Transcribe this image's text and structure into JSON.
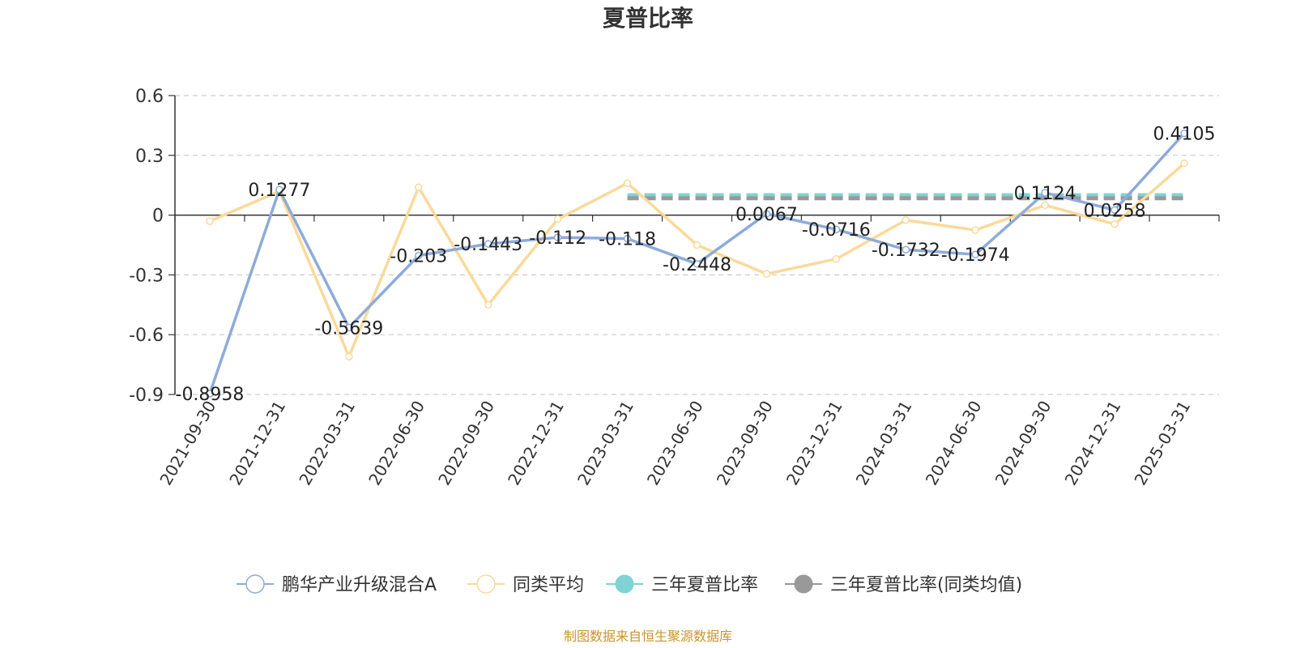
{
  "chart_data": {
    "type": "line",
    "title": "夏普比率",
    "source": "制图数据来自恒生聚源数据库",
    "x": [
      "2021-09-30",
      "2021-12-31",
      "2022-03-31",
      "2022-06-30",
      "2022-09-30",
      "2022-12-31",
      "2023-03-31",
      "2023-06-30",
      "2023-09-30",
      "2023-12-31",
      "2024-03-31",
      "2024-06-30",
      "2024-09-30",
      "2024-12-31",
      "2025-03-31"
    ],
    "yticks": [
      0.6,
      0.3,
      0,
      -0.3,
      -0.6,
      -0.9
    ],
    "ylim": [
      -0.9,
      0.6
    ],
    "grid": true,
    "legend_position": "bottom",
    "series": [
      {
        "name": "鹏华产业升级混合A",
        "color": "#8eabd9",
        "values": [
          -0.8958,
          0.1277,
          -0.5639,
          -0.203,
          -0.1443,
          -0.112,
          -0.118,
          -0.2448,
          0.0067,
          -0.0716,
          -0.1732,
          -0.1974,
          0.1124,
          0.0258,
          0.4105
        ],
        "labels": [
          "-0.8958",
          "0.1277",
          "-0.5639",
          "-0.203",
          "-0.1443",
          "-0.112",
          "-0.118",
          "-0.2448",
          "0.0067",
          "-0.0716",
          "-0.1732",
          "-0.1974",
          "0.1124",
          "0.0258",
          "0.4105"
        ]
      },
      {
        "name": "同类平均",
        "color": "#fbd999",
        "values": [
          -0.03,
          0.12,
          -0.71,
          0.14,
          -0.45,
          -0.02,
          0.16,
          -0.15,
          -0.295,
          -0.22,
          -0.025,
          -0.075,
          0.05,
          -0.045,
          0.26
        ]
      },
      {
        "name": "三年夏普比率",
        "color": "#7fd3d6",
        "dashed": true,
        "start": "2023-03-31",
        "end": "2025-03-31",
        "value": 0.1
      },
      {
        "name": "三年夏普比率(同类均值)",
        "color": "#999999",
        "dashed": true,
        "start": "2023-03-31",
        "end": "2025-03-31",
        "value": 0.085
      }
    ]
  }
}
